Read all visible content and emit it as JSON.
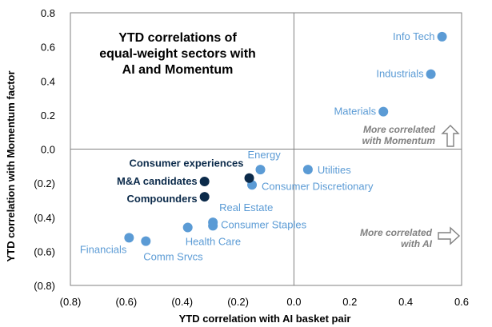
{
  "chart_data": {
    "type": "scatter",
    "title": "YTD correlations of\nequal-weight sectors with\nAI and Momentum",
    "xlabel": "YTD correlation with AI basket pair",
    "ylabel": "YTD correlation with Momentum factor",
    "xlim": [
      -0.8,
      0.6
    ],
    "ylim": [
      -0.8,
      0.8
    ],
    "x_ticks": [
      -0.8,
      -0.6,
      -0.4,
      -0.2,
      0.0,
      0.2,
      0.4,
      0.6
    ],
    "x_tick_labels": [
      "(0.8)",
      "(0.6)",
      "(0.4)",
      "(0.2)",
      "0.0",
      "0.2",
      "0.4",
      "0.6"
    ],
    "y_ticks": [
      0.8,
      0.6,
      0.4,
      0.2,
      0.0,
      -0.2,
      -0.4,
      -0.6,
      -0.8
    ],
    "y_tick_labels": [
      "0.8",
      "0.6",
      "0.4",
      "0.2",
      "0.0",
      "(0.2)",
      "(0.4)",
      "(0.6)",
      "(0.8)"
    ],
    "grid": false,
    "colors": {
      "sector": "#5b9bd5",
      "basket": "#0b2a4a",
      "axis": "#808080",
      "annotation": "#808080"
    },
    "points": [
      {
        "label": "Info Tech",
        "x": 0.53,
        "y": 0.66,
        "group": "sector"
      },
      {
        "label": "Industrials",
        "x": 0.49,
        "y": 0.44,
        "group": "sector"
      },
      {
        "label": "Materials",
        "x": 0.32,
        "y": 0.22,
        "group": "sector"
      },
      {
        "label": "Energy",
        "x": -0.12,
        "y": -0.12,
        "group": "sector"
      },
      {
        "label": "Utilities",
        "x": 0.05,
        "y": -0.12,
        "group": "sector"
      },
      {
        "label": "Consumer Discretionary",
        "x": -0.15,
        "y": -0.21,
        "group": "sector"
      },
      {
        "label": "Real Estate",
        "x": -0.29,
        "y": -0.43,
        "group": "sector"
      },
      {
        "label": "Consumer Staples",
        "x": -0.29,
        "y": -0.45,
        "group": "sector"
      },
      {
        "label": "Health Care",
        "x": -0.38,
        "y": -0.46,
        "group": "sector"
      },
      {
        "label": "Financials",
        "x": -0.59,
        "y": -0.52,
        "group": "sector"
      },
      {
        "label": "Comm Srvcs",
        "x": -0.53,
        "y": -0.54,
        "group": "sector"
      },
      {
        "label": "Consumer experiences",
        "x": -0.16,
        "y": -0.17,
        "group": "basket"
      },
      {
        "label": "M&A candidates",
        "x": -0.32,
        "y": -0.19,
        "group": "basket"
      },
      {
        "label": "Compounders",
        "x": -0.32,
        "y": -0.28,
        "group": "basket"
      }
    ],
    "annotations": [
      {
        "text": "More correlated\nwith Momentum",
        "arrow": "up"
      },
      {
        "text": "More correlated\nwith AI",
        "arrow": "right"
      }
    ]
  }
}
